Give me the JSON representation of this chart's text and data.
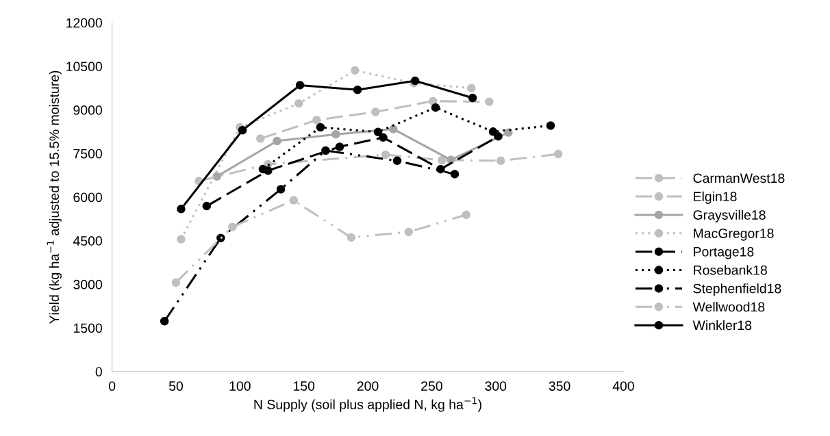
{
  "chart_data": {
    "type": "line",
    "xlabel": "N Supply (soil plus applied N, kg ha$^{−1}$)",
    "ylabel": "Yield (kg ha$^{−1}$ adjusted to 15.5% moisture)",
    "xlim": [
      0,
      400
    ],
    "xticks": [
      0,
      50,
      100,
      150,
      200,
      250,
      300,
      350,
      400
    ],
    "ylim": [
      0,
      12000
    ],
    "yticks": [
      0,
      1500,
      3000,
      4500,
      6000,
      7500,
      9000,
      10500,
      12000
    ],
    "grid": false,
    "legend": "right",
    "marker": "circle",
    "series": [
      {
        "name": "CarmanWest18",
        "color": "#bfbfbf",
        "line_style": "dashed",
        "x": [
          116,
          160,
          206,
          251,
          295
        ],
        "values": [
          8010,
          8650,
          8930,
          9300,
          9280
        ]
      },
      {
        "name": "Elgin18",
        "color": "#bfbfbf",
        "line_style": "dashdot",
        "x": [
          68,
          122,
          214,
          258,
          304,
          349
        ],
        "values": [
          6550,
          7130,
          7460,
          7270,
          7250,
          7480
        ]
      },
      {
        "name": "Graysville18",
        "color": "#a5a5a5",
        "line_style": "solid",
        "x": [
          82,
          129,
          175,
          220,
          265,
          310
        ],
        "values": [
          6710,
          7930,
          8160,
          8340,
          7280,
          8220
        ]
      },
      {
        "name": "MacGregor18",
        "color": "#bfbfbf",
        "line_style": "dotted",
        "x": [
          54,
          100,
          146,
          190,
          236,
          281
        ],
        "values": [
          4550,
          8400,
          9220,
          10360,
          9920,
          9750
        ]
      },
      {
        "name": "Portage18",
        "color": "#000000",
        "line_style": "dashed",
        "x": [
          74,
          122,
          178,
          212,
          257,
          302
        ],
        "values": [
          5690,
          6910,
          7730,
          8050,
          6960,
          8090
        ]
      },
      {
        "name": "Rosebank18",
        "color": "#000000",
        "line_style": "dotted",
        "x": [
          118,
          163,
          208,
          253,
          298,
          343
        ],
        "values": [
          6960,
          8400,
          8240,
          9080,
          8250,
          8460
        ]
      },
      {
        "name": "Stephenfield18",
        "color": "#000000",
        "line_style": "dashdotdot",
        "x": [
          41,
          85,
          132,
          167,
          223,
          268
        ],
        "values": [
          1730,
          4590,
          6270,
          7600,
          7250,
          6790
        ]
      },
      {
        "name": "Wellwood18",
        "color": "#bfbfbf",
        "line_style": "dashdotdot",
        "x": [
          50,
          94,
          142,
          187,
          232,
          277
        ],
        "values": [
          3060,
          4970,
          5890,
          4610,
          4800,
          5390
        ]
      },
      {
        "name": "Winkler18",
        "color": "#000000",
        "line_style": "solid",
        "x": [
          54,
          102,
          147,
          192,
          237,
          282
        ],
        "values": [
          5590,
          8300,
          9850,
          9690,
          10000,
          9410
        ]
      }
    ]
  }
}
